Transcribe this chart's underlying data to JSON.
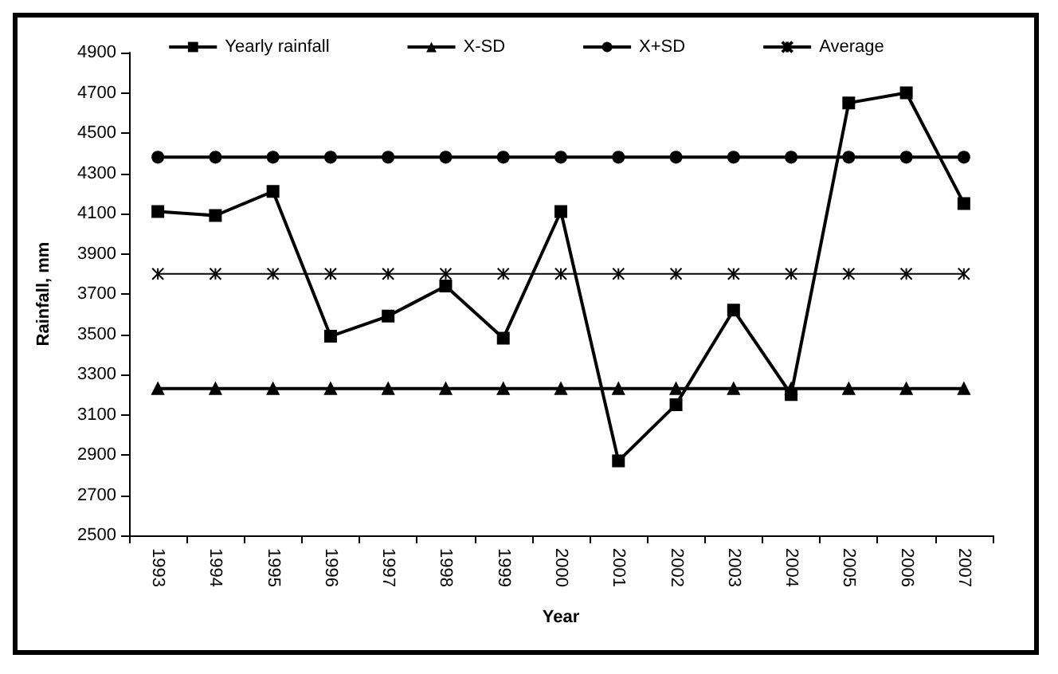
{
  "chart_data": {
    "type": "line",
    "xlabel": "Year",
    "ylabel": "Rainfall, mm",
    "categories": [
      "1993",
      "1994",
      "1995",
      "1996",
      "1997",
      "1998",
      "1999",
      "2000",
      "2001",
      "2002",
      "2003",
      "2004",
      "2005",
      "2006",
      "2007"
    ],
    "series": [
      {
        "name": "Yearly rainfall",
        "color": "#000000",
        "marker": "square",
        "values": [
          4110,
          4090,
          4210,
          3490,
          3590,
          3740,
          3480,
          4110,
          2870,
          3150,
          3620,
          3200,
          4650,
          4700,
          4150
        ]
      },
      {
        "name": "X-SD",
        "color": "#000000",
        "marker": "triangle",
        "values": [
          3230,
          3230,
          3230,
          3230,
          3230,
          3230,
          3230,
          3230,
          3230,
          3230,
          3230,
          3230,
          3230,
          3230,
          3230
        ]
      },
      {
        "name": "X+SD",
        "color": "#000000",
        "marker": "circle",
        "values": [
          4380,
          4380,
          4380,
          4380,
          4380,
          4380,
          4380,
          4380,
          4380,
          4380,
          4380,
          4380,
          4380,
          4380,
          4380
        ]
      },
      {
        "name": "Average",
        "color": "#000000",
        "marker": "cross",
        "values": [
          3800,
          3800,
          3800,
          3800,
          3800,
          3800,
          3800,
          3800,
          3800,
          3800,
          3800,
          3800,
          3800,
          3800,
          3800
        ]
      }
    ],
    "ylim": [
      2500,
      4900
    ],
    "yticks": [
      2500,
      2700,
      2900,
      3100,
      3300,
      3500,
      3700,
      3900,
      4100,
      4300,
      4500,
      4700,
      4900
    ],
    "grid": false,
    "legend": "top",
    "line_style": "solid"
  }
}
